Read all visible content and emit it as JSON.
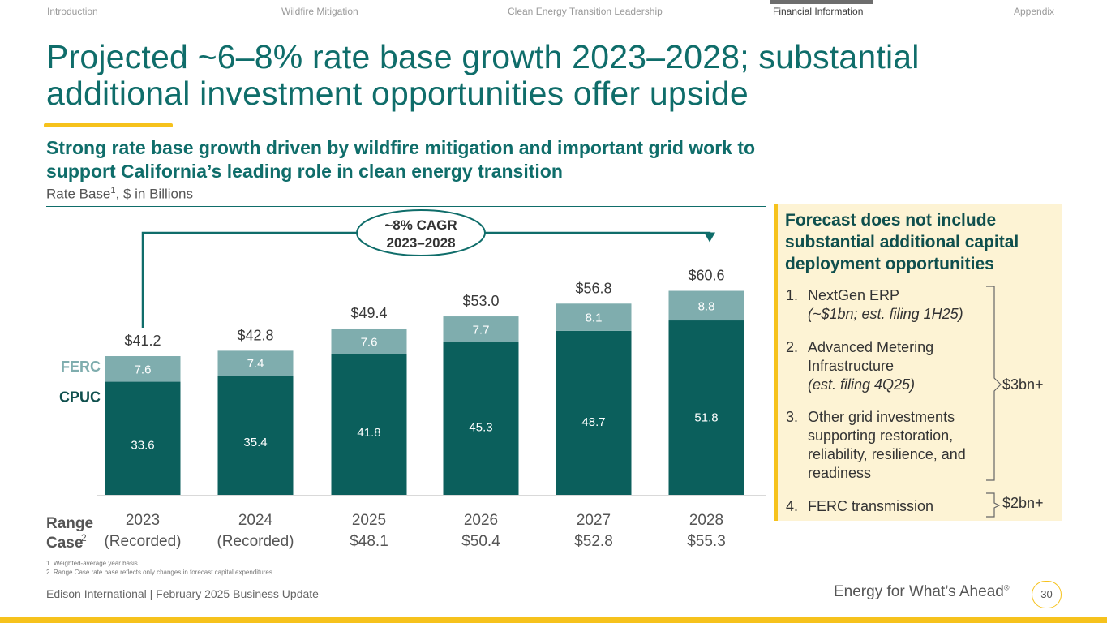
{
  "nav": {
    "items": [
      "Introduction",
      "Wildfire Mitigation",
      "Clean Energy Transition Leadership",
      "Financial Information",
      "Appendix"
    ],
    "active": "Financial Information"
  },
  "title": "Projected ~6–8% rate base growth 2023–2028; substantial additional investment opportunities offer upside",
  "subtitle": "Strong rate base growth driven by wildfire mitigation and important grid work to support California’s leading role in clean energy transition",
  "units": {
    "text": "Rate Base",
    "sup": "1",
    "rest": ", $ in Billions"
  },
  "chart_data": {
    "type": "bar",
    "stacked": true,
    "categories": [
      "2023",
      "2024",
      "2025",
      "2026",
      "2027",
      "2028"
    ],
    "category_sublabels": [
      "(Recorded)",
      "(Recorded)",
      "$48.1",
      "$50.4",
      "$52.8",
      "$55.3"
    ],
    "series": [
      {
        "name": "CPUC",
        "values": [
          33.6,
          35.4,
          41.8,
          45.3,
          48.7,
          51.8
        ],
        "color": "#0b5f5c"
      },
      {
        "name": "FERC",
        "values": [
          7.6,
          7.4,
          7.6,
          7.7,
          8.1,
          8.8
        ],
        "color": "#7fadae"
      }
    ],
    "totals": [
      "$41.2",
      "$42.8",
      "$49.4",
      "$53.0",
      "$56.8",
      "$60.6"
    ],
    "cagr_label": [
      "~8% CAGR",
      "2023–2028"
    ],
    "range_case_label": [
      "Range",
      "Case",
      "2"
    ],
    "ylim": [
      0,
      62
    ]
  },
  "panel": {
    "title": "Forecast does not include substantial additional capital deployment opportunities",
    "items": [
      {
        "num": "1.",
        "text": "NextGen ERP",
        "note": "(~$1bn; est. filing 1H25)"
      },
      {
        "num": "2.",
        "text": "Advanced Metering Infrastructure",
        "note": "(est. filing 4Q25)"
      },
      {
        "num": "3.",
        "text": "Other grid investments supporting restoration, reliability, resilience, and readiness",
        "note": ""
      },
      {
        "num": "4.",
        "text": "FERC transmission",
        "note": ""
      }
    ],
    "brace_labels": [
      "$3bn+",
      "$2bn+"
    ]
  },
  "footnotes": [
    "1.   Weighted-average year basis",
    "2.   Range Case rate base reflects only changes in forecast capital expenditures"
  ],
  "footer": {
    "left": "Edison International |  February 2025 Business Update",
    "brand": "Energy for What’s Ahead",
    "brand_mark": "®",
    "page": "30"
  },
  "colors": {
    "teal": "#0f6d6a",
    "gold": "#f6c21c",
    "cpuc": "#0b5f5c",
    "ferc": "#7fadae",
    "panel_bg": "#fdf3d4"
  }
}
